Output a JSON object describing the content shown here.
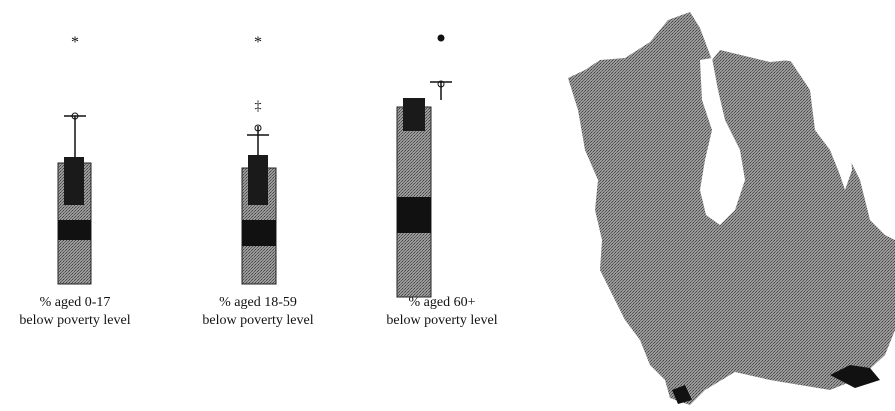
{
  "plots": [
    {
      "label": [
        "% aged 0-17",
        "below poverty level"
      ]
    },
    {
      "label": [
        "% aged 18-59",
        "below poverty level"
      ]
    },
    {
      "label": [
        "% aged 60+",
        "below poverty level"
      ]
    }
  ]
}
